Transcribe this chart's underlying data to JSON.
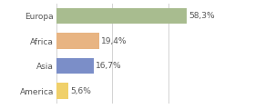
{
  "categories": [
    "Europa",
    "Africa",
    "Asia",
    "America"
  ],
  "values": [
    58.3,
    19.4,
    16.7,
    5.6
  ],
  "labels": [
    "58,3%",
    "19,4%",
    "16,7%",
    "5,6%"
  ],
  "bar_colors": [
    "#a8bc8f",
    "#e8b482",
    "#7b8ec8",
    "#f0d06a"
  ],
  "background_color": "#ffffff",
  "xlim": [
    0,
    75
  ],
  "bar_height": 0.65,
  "label_fontsize": 6.5,
  "tick_fontsize": 6.5,
  "grid_ticks": [
    0,
    25,
    50,
    75
  ],
  "grid_color": "#cccccc",
  "grid_linewidth": 0.6,
  "text_color": "#555555"
}
